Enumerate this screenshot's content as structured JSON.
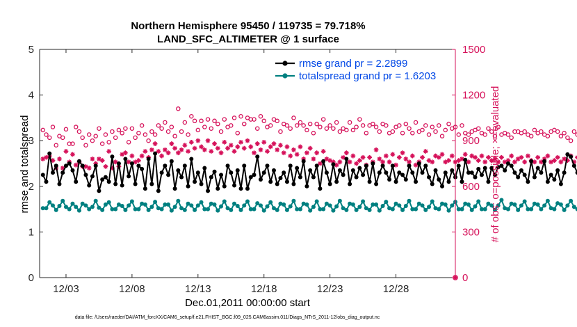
{
  "chart_data": {
    "type": "line",
    "title": "Northern Hemisphere 95450 / 119735 = 79.718%",
    "subtitle": "LAND_SFC_ALTIMETER @ 1 surface",
    "xlabel": "Dec.01,2011 00:00:00 start",
    "ylabel_left": "rmse and totalspread",
    "ylabel_right": "# of obs: o=possible; ×=evaluated",
    "ylim_left": [
      0,
      5
    ],
    "ylim_right": [
      0,
      1500
    ],
    "yticks_left": [
      0,
      1,
      2,
      3,
      4,
      5
    ],
    "yticks_right": [
      0,
      300,
      600,
      900,
      1200,
      1500
    ],
    "xlim": [
      1.0,
      32.5
    ],
    "xticks": [
      3,
      8,
      13,
      18,
      23,
      28
    ],
    "xtick_labels": [
      "12/03",
      "12/08",
      "12/13",
      "12/18",
      "12/23",
      "12/28"
    ],
    "x_start": 1.25,
    "x_step": 0.25,
    "legend_position": "top-right",
    "footer": "data file: /Users/raeder/DAI/ATM_forcXX/CAM6_setup/f.e21.FHIST_BGC.f09_025.CAM6assim.011/Diags_NTrS_2011-12/obs_diag_output.nc",
    "colors": {
      "rmse": "#000000",
      "totalspread": "#008080",
      "obs": "#d6125a"
    },
    "series": [
      {
        "name": "rmse grand pr = 2.2899",
        "axis": "left",
        "values": [
          2.25,
          2.1,
          2.72,
          2.3,
          2.45,
          2.05,
          2.3,
          2.45,
          2.5,
          2.35,
          2.1,
          2.55,
          2.45,
          2.25,
          2.02,
          2.22,
          2.45,
          1.9,
          2.15,
          2.2,
          2.1,
          2.65,
          2.05,
          2.5,
          2.02,
          2.6,
          2.22,
          2.5,
          2.05,
          2.45,
          2.38,
          1.95,
          2.6,
          2.05,
          2.72,
          1.9,
          2.3,
          2.45,
          2.25,
          2.55,
          1.95,
          2.35,
          2.2,
          2.45,
          2.0,
          2.6,
          2.1,
          2.3,
          2.05,
          2.4,
          1.9,
          2.2,
          2.32,
          1.95,
          2.25,
          2.0,
          2.45,
          2.3,
          2.02,
          2.35,
          1.95,
          2.45,
          1.95,
          2.2,
          2.25,
          2.65,
          2.15,
          2.3,
          2.45,
          2.1,
          2.35,
          2.05,
          2.18,
          2.3,
          2.1,
          2.45,
          2.05,
          2.4,
          2.2,
          2.55,
          2.0,
          2.35,
          2.2,
          2.45,
          1.95,
          2.55,
          2.3,
          2.05,
          2.48,
          2.1,
          2.35,
          2.25,
          2.6,
          2.05,
          2.35,
          2.2,
          2.4,
          2.25,
          2.45,
          2.1,
          2.5,
          2.05,
          2.3,
          2.45,
          2.3,
          2.15,
          2.45,
          2.1,
          2.3,
          2.25,
          2.15,
          2.45,
          2.3,
          2.1,
          2.5,
          2.3,
          2.45,
          2.2,
          2.05,
          2.35,
          2.15,
          2.0,
          2.3,
          2.1,
          2.35,
          2.2,
          2.45,
          2.1,
          2.58,
          2.3,
          2.3,
          2.2,
          2.38,
          2.25,
          2.4,
          2.1,
          2.4,
          2.25,
          2.42,
          2.45,
          2.35,
          2.5,
          2.45,
          2.3,
          2.2,
          2.35,
          2.25,
          2.1,
          2.55,
          2.2,
          2.4,
          2.3,
          2.55,
          2.1,
          2.25,
          2.15,
          2.35,
          2.05,
          2.3,
          2.7,
          2.65,
          2.45,
          2.3,
          2.6,
          2.5,
          2.2,
          2.55,
          2.45,
          2.1,
          2.35,
          2.2,
          2.5,
          2.3,
          2.1,
          2.4,
          2.25,
          2.5,
          2.15,
          2.35,
          2.3,
          2.25,
          2.2,
          2.05,
          2.0,
          1.95,
          1.98
        ]
      },
      {
        "name": "totalspread grand pr = 1.6203",
        "axis": "left",
        "values": [
          1.52,
          1.52,
          1.65,
          1.58,
          1.48,
          1.57,
          1.68,
          1.55,
          1.5,
          1.62,
          1.55,
          1.47,
          1.62,
          1.58,
          1.5,
          1.55,
          1.68,
          1.53,
          1.48,
          1.6,
          1.65,
          1.5,
          1.5,
          1.6,
          1.57,
          1.48,
          1.58,
          1.67,
          1.5,
          1.5,
          1.62,
          1.6,
          1.48,
          1.55,
          1.66,
          1.52,
          1.5,
          1.6,
          1.6,
          1.47,
          1.55,
          1.68,
          1.52,
          1.48,
          1.62,
          1.58,
          1.48,
          1.58,
          1.65,
          1.5,
          1.5,
          1.62,
          1.6,
          1.47,
          1.56,
          1.67,
          1.52,
          1.48,
          1.62,
          1.57,
          1.48,
          1.58,
          1.67,
          1.5,
          1.5,
          1.63,
          1.58,
          1.47,
          1.56,
          1.65,
          1.52,
          1.48,
          1.62,
          1.6,
          1.48,
          1.56,
          1.68,
          1.5,
          1.5,
          1.62,
          1.6,
          1.47,
          1.55,
          1.67,
          1.5,
          1.5,
          1.62,
          1.58,
          1.47,
          1.56,
          1.68,
          1.52,
          1.48,
          1.62,
          1.6,
          1.48,
          1.55,
          1.67,
          1.52,
          1.48,
          1.6,
          1.6,
          1.47,
          1.57,
          1.66,
          1.52,
          1.5,
          1.62,
          1.58,
          1.48,
          1.57,
          1.68,
          1.5,
          1.5,
          1.62,
          1.58,
          1.48,
          1.55,
          1.67,
          1.52,
          1.5,
          1.62,
          1.6,
          1.47,
          1.58,
          1.66,
          1.5,
          1.5,
          1.62,
          1.6,
          1.48,
          1.56,
          1.67,
          1.5,
          1.5,
          1.62,
          1.58,
          1.48,
          1.58,
          1.7,
          1.52,
          1.5,
          1.62,
          1.6,
          1.48,
          1.58,
          1.67,
          1.5,
          1.5,
          1.62,
          1.6,
          1.5,
          1.58,
          1.68,
          1.52,
          1.5,
          1.63,
          1.6,
          1.48,
          1.58,
          1.68,
          1.55,
          1.5,
          1.65,
          1.6,
          1.5,
          1.6,
          1.68,
          1.52,
          1.5,
          1.85,
          1.62,
          1.5,
          1.58,
          1.68,
          1.55,
          1.58,
          1.72,
          1.65,
          1.6,
          1.5,
          1.58,
          1.65,
          1.52,
          1.5,
          1.5
        ]
      },
      {
        "name": "obs possible (o)",
        "axis": "right",
        "values": [
          970,
          940,
          920,
          990,
          870,
          930,
          920,
          975,
          880,
          880,
          990,
          960,
          920,
          870,
          940,
          900,
          930,
          980,
          880,
          940,
          890,
          960,
          920,
          970,
          950,
          980,
          890,
          980,
          920,
          950,
          1000,
          940,
          900,
          960,
          940,
          1000,
          980,
          1020,
          960,
          990,
          930,
          1110,
          960,
          1020,
          940,
          1060,
          1030,
          970,
          1030,
          990,
          1040,
          980,
          1030,
          1010,
          960,
          1040,
          990,
          1000,
          1050,
          950,
          1060,
          1010,
          1050,
          1040,
          1040,
          980,
          1060,
          1030,
          990,
          1000,
          1040,
          1030,
          960,
          1010,
          1000,
          980,
          1050,
          1000,
          1020,
          1000,
          970,
          1010,
          950,
          1010,
          990,
          1040,
          980,
          1000,
          980,
          1020,
          960,
          980,
          970,
          1020,
          970,
          990,
          1040,
          1000,
          950,
          1000,
          1010,
          990,
          960,
          1010,
          1000,
          950,
          960,
          990,
          1000,
          950,
          1010,
          980,
          950,
          1020,
          960,
          970,
          1000,
          940,
          990,
          960,
          1000,
          930,
          970,
          1010,
          980,
          990,
          940,
          1000,
          950,
          940,
          960,
          970,
          980,
          950,
          940,
          980,
          960,
          930,
          990,
          940,
          950,
          940,
          920,
          960,
          960,
          950,
          960,
          940,
          930,
          970,
          950,
          960,
          940,
          930,
          960,
          970,
          960,
          930,
          950,
          920,
          900,
          960,
          940,
          960,
          920,
          930,
          960,
          890,
          930,
          950,
          960,
          900,
          890,
          960,
          920,
          940,
          910,
          920,
          960,
          920,
          890,
          970,
          940
        ]
      },
      {
        "name": "obs evaluated (×)",
        "axis": "right",
        "values": [
          780,
          790,
          800,
          770,
          720,
          780,
          720,
          830,
          760,
          810,
          740,
          760,
          730,
          730,
          720,
          780,
          750,
          780,
          770,
          730,
          830,
          720,
          760,
          730,
          810,
          820,
          760,
          800,
          760,
          770,
          800,
          830,
          790,
          840,
          880,
          830,
          800,
          840,
          820,
          880,
          850,
          820,
          840,
          870,
          830,
          890,
          850,
          900,
          860,
          840,
          900,
          830,
          880,
          850,
          820,
          890,
          850,
          870,
          830,
          860,
          890,
          850,
          900,
          860,
          820,
          880,
          840,
          890,
          830,
          860,
          880,
          840,
          870,
          820,
          860,
          800,
          840,
          810,
          860,
          780,
          820,
          850,
          780,
          820,
          750,
          830,
          780,
          770,
          760,
          740,
          760,
          790,
          820,
          760,
          800,
          750,
          770,
          790,
          740,
          790,
          760,
          840,
          780,
          760,
          800,
          760,
          810,
          740,
          790,
          820,
          780,
          760,
          800,
          740,
          760,
          790,
          830,
          770,
          760,
          800,
          790,
          810,
          760,
          770,
          800,
          760,
          770,
          780,
          810,
          760,
          800,
          790,
          770,
          800,
          760,
          790,
          770,
          780,
          760,
          790,
          760,
          770,
          800,
          760,
          780,
          790,
          760,
          800,
          770,
          760,
          790,
          760,
          780,
          800,
          760,
          770,
          790,
          760,
          780,
          770,
          800,
          760,
          790,
          810,
          780,
          800,
          820,
          790,
          810,
          780,
          800,
          770,
          760,
          780,
          790,
          800,
          760,
          770,
          810,
          790,
          780,
          760,
          780,
          760,
          740,
          800,
          770,
          760
        ]
      }
    ],
    "end_markers": {
      "x": 32.5,
      "values": [
        0,
        0
      ]
    }
  }
}
